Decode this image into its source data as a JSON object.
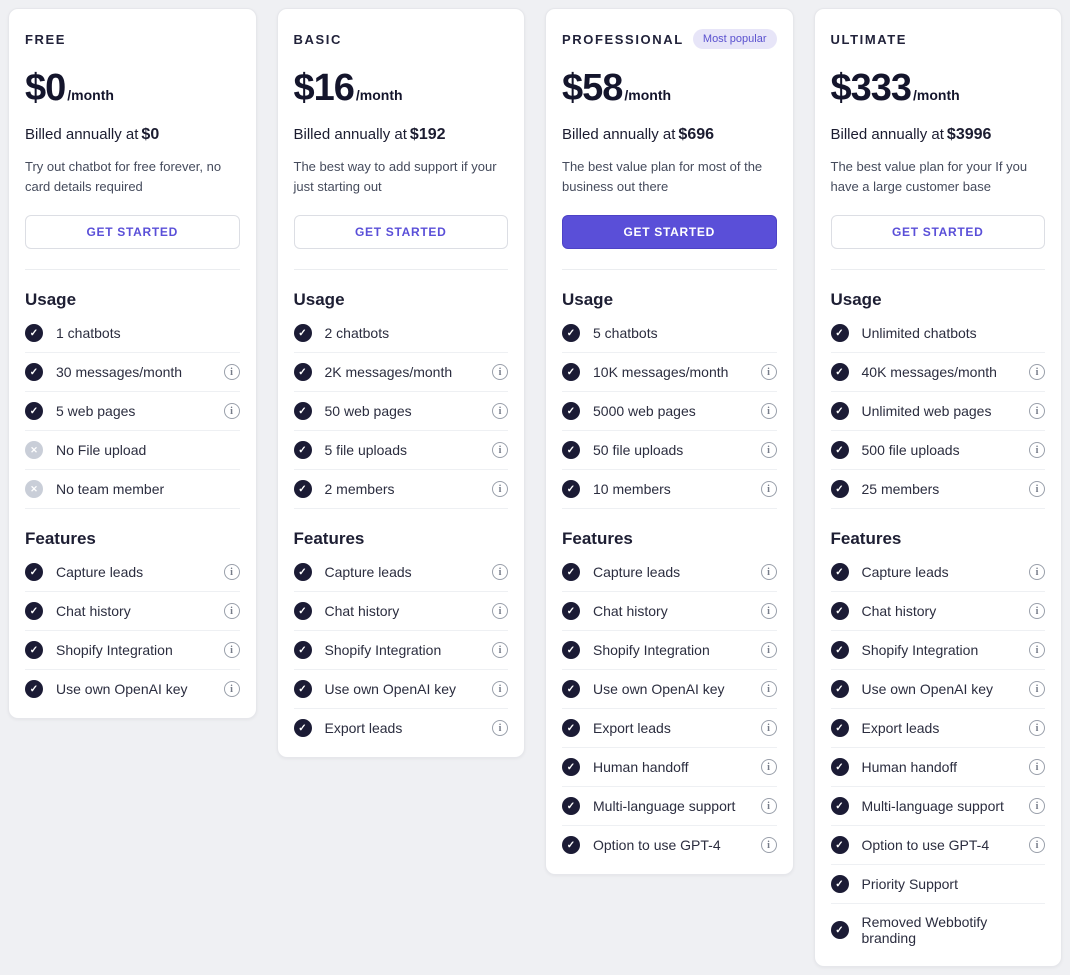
{
  "page": {
    "background": "#eff0f3"
  },
  "colors": {
    "accent_purple": "#5a4fd8",
    "badge_background": "#e7e5f8",
    "badge_text": "#5a51cf",
    "check_circle": "#1b1b35",
    "cross_circle": "#c9ced8",
    "card_background": "#ffffff",
    "text_dark": "#14152c"
  },
  "section_labels": {
    "usage": "Usage",
    "features": "Features"
  },
  "icons": {
    "check": "✓",
    "cross": "✕",
    "info": "i"
  },
  "plans": [
    {
      "id": "free",
      "name": "FREE",
      "badge": "",
      "price": "$0",
      "period": "/month",
      "billed_prefix": "Billed annually at",
      "billed_amount": "$0",
      "description": "Try out chatbot for free forever, no card details required",
      "cta": {
        "label": "GET STARTED",
        "style": "outline"
      },
      "usage": [
        {
          "label": "1 chatbots",
          "included": true,
          "info": false
        },
        {
          "label": "30 messages/month",
          "included": true,
          "info": true
        },
        {
          "label": "5 web pages",
          "included": true,
          "info": true
        },
        {
          "label": "No File upload",
          "included": false,
          "info": false
        },
        {
          "label": "No team member",
          "included": false,
          "info": false
        }
      ],
      "features": [
        {
          "label": "Capture leads",
          "included": true,
          "info": true
        },
        {
          "label": "Chat history",
          "included": true,
          "info": true
        },
        {
          "label": "Shopify Integration",
          "included": true,
          "info": true
        },
        {
          "label": "Use own OpenAI key",
          "included": true,
          "info": true
        }
      ]
    },
    {
      "id": "basic",
      "name": "BASIC",
      "badge": "",
      "price": "$16",
      "period": "/month",
      "billed_prefix": "Billed annually at",
      "billed_amount": "$192",
      "description": "The best way to add support if your just starting out",
      "cta": {
        "label": "GET STARTED",
        "style": "outline"
      },
      "usage": [
        {
          "label": "2 chatbots",
          "included": true,
          "info": false
        },
        {
          "label": "2K messages/month",
          "included": true,
          "info": true
        },
        {
          "label": "50 web pages",
          "included": true,
          "info": true
        },
        {
          "label": "5 file uploads",
          "included": true,
          "info": true
        },
        {
          "label": "2 members",
          "included": true,
          "info": true
        }
      ],
      "features": [
        {
          "label": "Capture leads",
          "included": true,
          "info": true
        },
        {
          "label": "Chat history",
          "included": true,
          "info": true
        },
        {
          "label": "Shopify Integration",
          "included": true,
          "info": true
        },
        {
          "label": "Use own OpenAI key",
          "included": true,
          "info": true
        },
        {
          "label": "Export leads",
          "included": true,
          "info": true
        }
      ]
    },
    {
      "id": "professional",
      "name": "PROFESSIONAL",
      "badge": "Most popular",
      "price": "$58",
      "period": "/month",
      "billed_prefix": "Billed annually at",
      "billed_amount": "$696",
      "description": "The best value plan for most of the business out there",
      "cta": {
        "label": "GET STARTED",
        "style": "solid"
      },
      "usage": [
        {
          "label": "5 chatbots",
          "included": true,
          "info": false
        },
        {
          "label": "10K messages/month",
          "included": true,
          "info": true
        },
        {
          "label": "5000 web pages",
          "included": true,
          "info": true
        },
        {
          "label": "50 file uploads",
          "included": true,
          "info": true
        },
        {
          "label": "10 members",
          "included": true,
          "info": true
        }
      ],
      "features": [
        {
          "label": "Capture leads",
          "included": true,
          "info": true
        },
        {
          "label": "Chat history",
          "included": true,
          "info": true
        },
        {
          "label": "Shopify Integration",
          "included": true,
          "info": true
        },
        {
          "label": "Use own OpenAI key",
          "included": true,
          "info": true
        },
        {
          "label": "Export leads",
          "included": true,
          "info": true
        },
        {
          "label": "Human handoff",
          "included": true,
          "info": true
        },
        {
          "label": "Multi-language support",
          "included": true,
          "info": true
        },
        {
          "label": "Option to use GPT-4",
          "included": true,
          "info": true
        }
      ]
    },
    {
      "id": "ultimate",
      "name": "ULTIMATE",
      "badge": "",
      "price": "$333",
      "period": "/month",
      "billed_prefix": "Billed annually at",
      "billed_amount": "$3996",
      "description": "The best value plan for your If you have a large customer base",
      "cta": {
        "label": "GET STARTED",
        "style": "outline"
      },
      "usage": [
        {
          "label": "Unlimited chatbots",
          "included": true,
          "info": false
        },
        {
          "label": "40K messages/month",
          "included": true,
          "info": true
        },
        {
          "label": "Unlimited web pages",
          "included": true,
          "info": true
        },
        {
          "label": "500 file uploads",
          "included": true,
          "info": true
        },
        {
          "label": "25 members",
          "included": true,
          "info": true
        }
      ],
      "features": [
        {
          "label": "Capture leads",
          "included": true,
          "info": true
        },
        {
          "label": "Chat history",
          "included": true,
          "info": true
        },
        {
          "label": "Shopify Integration",
          "included": true,
          "info": true
        },
        {
          "label": "Use own OpenAI key",
          "included": true,
          "info": true
        },
        {
          "label": "Export leads",
          "included": true,
          "info": true
        },
        {
          "label": "Human handoff",
          "included": true,
          "info": true
        },
        {
          "label": "Multi-language support",
          "included": true,
          "info": true
        },
        {
          "label": "Option to use GPT-4",
          "included": true,
          "info": true
        },
        {
          "label": "Priority Support",
          "included": true,
          "info": false
        },
        {
          "label": "Removed Webbotify branding",
          "included": true,
          "info": false
        }
      ]
    }
  ]
}
